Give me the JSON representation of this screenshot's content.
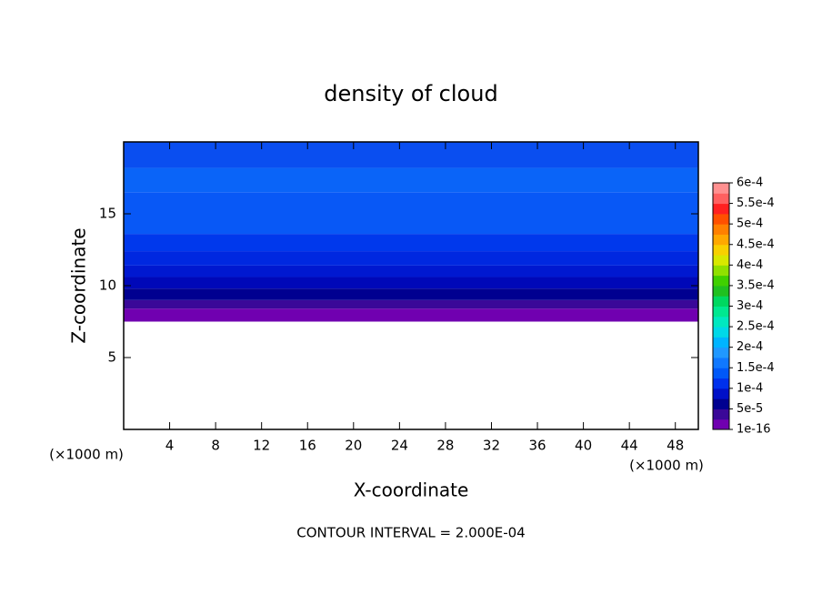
{
  "chart_data": {
    "type": "contour",
    "title": "density of cloud",
    "xlabel": "X-coordinate",
    "ylabel": "Z-coordinate",
    "x_unit": "(×1000 m)",
    "y_unit": "(×1000 m)",
    "note": "CONTOUR INTERVAL = 2.000E-04",
    "xlim": [
      0,
      50
    ],
    "ylim": [
      0,
      20
    ],
    "xticks": [
      4,
      8,
      12,
      16,
      20,
      24,
      28,
      32,
      36,
      40,
      44,
      48
    ],
    "yticks": [
      5,
      10,
      15
    ],
    "bands": [
      {
        "z": [
          7.5,
          8.4
        ],
        "color": "#7000b0"
      },
      {
        "z": [
          8.4,
          9.0
        ],
        "color": "#3a0898"
      },
      {
        "z": [
          9.0,
          9.8
        ],
        "color": "#000090"
      },
      {
        "z": [
          9.8,
          10.6
        ],
        "color": "#0008b8"
      },
      {
        "z": [
          10.6,
          11.4
        ],
        "color": "#0018d0"
      },
      {
        "z": [
          11.4,
          12.4
        ],
        "color": "#0028e0"
      },
      {
        "z": [
          12.4,
          13.6
        ],
        "color": "#0038ec"
      },
      {
        "z": [
          13.6,
          16.5
        ],
        "color": "#0858f6"
      },
      {
        "z": [
          16.5,
          18.2
        ],
        "color": "#0a64f8"
      },
      {
        "z": [
          18.2,
          20
        ],
        "color": "#0a4ef0"
      }
    ],
    "colorbar": {
      "colors": [
        "#7000b0",
        "#3a0898",
        "#000090",
        "#0010c8",
        "#0030ec",
        "#0058f8",
        "#1078ff",
        "#2098ff",
        "#00b4ff",
        "#00d8e8",
        "#00e8c0",
        "#00e890",
        "#00d860",
        "#20c020",
        "#40d000",
        "#90e000",
        "#d8e800",
        "#f8d000",
        "#ffa800",
        "#ff8000",
        "#ff5000",
        "#ff2020",
        "#ff6060",
        "#ff9090"
      ],
      "ticks": [
        {
          "value": 1e-16,
          "label": "1e-16"
        },
        {
          "value": 5e-05,
          "label": "5e-5"
        },
        {
          "value": 0.0001,
          "label": "1e-4"
        },
        {
          "value": 0.00015,
          "label": "1.5e-4"
        },
        {
          "value": 0.0002,
          "label": "2e-4"
        },
        {
          "value": 0.00025,
          "label": "2.5e-4"
        },
        {
          "value": 0.0003,
          "label": "3e-4"
        },
        {
          "value": 0.00035,
          "label": "3.5e-4"
        },
        {
          "value": 0.0004,
          "label": "4e-4"
        },
        {
          "value": 0.00045,
          "label": "4.5e-4"
        },
        {
          "value": 0.0005,
          "label": "5e-4"
        },
        {
          "value": 0.00055,
          "label": "5.5e-4"
        },
        {
          "value": 0.0006,
          "label": "6e-4"
        }
      ]
    }
  }
}
